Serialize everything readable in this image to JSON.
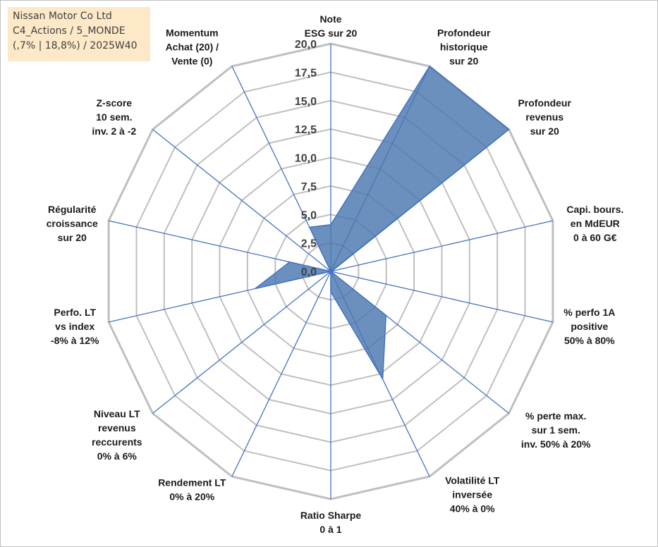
{
  "title_box": {
    "line1": "Nissan Motor Co Ltd",
    "line2": "C4_Actions / 5_MONDE",
    "line3": "(,7% | 18,8%) / 2025W40",
    "background": "#fde9c8"
  },
  "chart_data": {
    "type": "radar",
    "r_range": [
      0,
      20
    ],
    "tick_labels": [
      "0,0",
      "2,5",
      "5,0",
      "7,5",
      "10,0",
      "12,5",
      "15,0",
      "17,5",
      "20,0"
    ],
    "ticks": [
      0,
      2.5,
      5,
      7.5,
      10,
      12.5,
      15,
      17.5,
      20
    ],
    "grid": true,
    "grid_color": "#bfbfbf",
    "spoke_color": "#4472c4",
    "fill_color": "#4a78b0",
    "axes": [
      {
        "label": [
          "Note",
          "ESG sur 20"
        ],
        "value": 4.1
      },
      {
        "label": [
          "Profondeur",
          "historique",
          "sur 20"
        ],
        "value": 20
      },
      {
        "label": [
          "Profondeur",
          "revenus",
          "sur 20"
        ],
        "value": 20
      },
      {
        "label": [
          "Capi. bours.",
          "en MdEUR",
          "0 à 60 G€"
        ],
        "value": 0.1
      },
      {
        "label": [
          "% perfo 1A",
          "positive",
          "50% à 80%"
        ],
        "value": 0
      },
      {
        "label": [
          "% perte max.",
          "sur 1 sem.",
          "inv. 50% à 20%"
        ],
        "value": 6.2
      },
      {
        "label": [
          "Volatilité LT",
          "inversée",
          "40% à 0%"
        ],
        "value": 10.5
      },
      {
        "label": [
          "Ratio Sharpe",
          "0 à 1"
        ],
        "value": 1.8
      },
      {
        "label": [
          "Rendement LT",
          "0% à 20%"
        ],
        "value": 0
      },
      {
        "label": [
          "Niveau LT",
          "revenus",
          "reccurents",
          "0% à 6%"
        ],
        "value": 0
      },
      {
        "label": [
          "Perfo. LT",
          "vs index",
          "-8% à 12%"
        ],
        "value": 6.8
      },
      {
        "label": [
          "Régularité",
          "croissance",
          "sur 20"
        ],
        "value": 3.7
      },
      {
        "label": [
          "Z-score",
          "10 sem.",
          "inv. 2 à -2"
        ],
        "value": 0
      },
      {
        "label": [
          "Momentum",
          "Achat (20) /",
          "Vente (0)"
        ],
        "value": 4.3
      }
    ]
  }
}
